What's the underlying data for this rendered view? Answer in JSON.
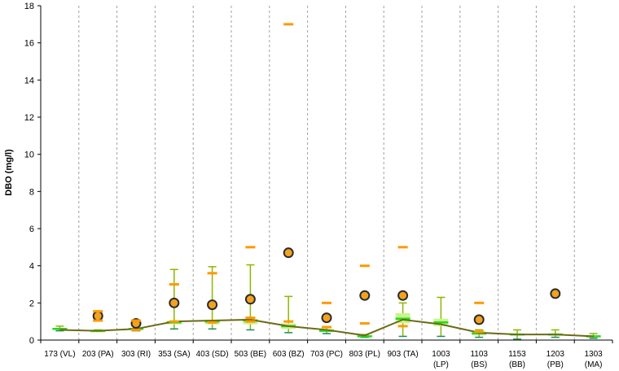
{
  "chart_data": {
    "type": "box",
    "title": "",
    "xlabel": "",
    "ylabel": "DBO (mg/l)",
    "ylim": [
      0,
      18
    ],
    "yticks": [
      0,
      2,
      4,
      6,
      8,
      10,
      12,
      14,
      16,
      18
    ],
    "grid": "vertical-dashed",
    "categories": [
      [
        "173 (VL)"
      ],
      [
        "203 (PA)"
      ],
      [
        "303 (RI)"
      ],
      [
        "353 (SA)"
      ],
      [
        "403 (SD)"
      ],
      [
        "503 (BE)"
      ],
      [
        "603 (BZ)"
      ],
      [
        "703 (PC)"
      ],
      [
        "803 (PL)"
      ],
      [
        "903 (TA)"
      ],
      [
        "1003",
        "(LP)"
      ],
      [
        "1103",
        "(BS)"
      ],
      [
        "1153",
        "(BB)"
      ],
      [
        "1203",
        "(PB)"
      ],
      [
        "1303",
        "(MA)"
      ]
    ],
    "whisker_low": [
      0.5,
      0.5,
      0.5,
      0.6,
      0.6,
      0.55,
      0.4,
      0.35,
      0.15,
      0.2,
      0.2,
      0.15,
      0.05,
      0.15,
      0.1
    ],
    "whisker_high": [
      0.75,
      0.55,
      0.8,
      3.8,
      3.95,
      4.05,
      2.35,
      0.7,
      0.3,
      2.0,
      2.3,
      0.55,
      0.55,
      0.55,
      0.35
    ],
    "q1": [
      0.55,
      0.5,
      0.55,
      0.85,
      0.85,
      0.85,
      0.6,
      0.45,
      0.2,
      0.9,
      0.75,
      0.3,
      0.25,
      0.25,
      0.15
    ],
    "q3": [
      0.65,
      0.5,
      0.65,
      1.05,
      1.1,
      1.15,
      0.9,
      0.6,
      0.25,
      1.45,
      1.15,
      0.45,
      0.35,
      0.35,
      0.25
    ],
    "median": [
      0.6,
      0.5,
      0.6,
      0.95,
      1.0,
      1.05,
      0.75,
      0.5,
      0.2,
      1.15,
      0.95,
      0.35,
      0.3,
      0.3,
      0.2
    ],
    "trend": [
      0.55,
      0.5,
      0.6,
      1.0,
      1.05,
      1.1,
      0.75,
      0.55,
      0.25,
      1.1,
      0.85,
      0.4,
      0.3,
      0.3,
      0.2
    ],
    "mean": [
      null,
      1.3,
      0.9,
      2.0,
      1.9,
      2.2,
      4.7,
      1.2,
      2.4,
      2.4,
      null,
      1.1,
      null,
      2.5,
      null
    ],
    "marks": [
      [],
      [
        1.05,
        1.55
      ],
      [
        0.55,
        1.05
      ],
      [
        1.0,
        3.0
      ],
      [
        0.95,
        3.6
      ],
      [
        1.0,
        1.2,
        5.0
      ],
      [
        1.0,
        17.0
      ],
      [
        0.7,
        2.0
      ],
      [
        0.9,
        4.0
      ],
      [
        0.75,
        5.0
      ],
      [],
      [
        0.45,
        2.0
      ],
      [],
      [],
      []
    ],
    "colors": {
      "whisker": "#8cb800",
      "box": "#c9f58c",
      "median": "#24d81c",
      "low_cap": "#1f8a5c",
      "trend": "#6b6b14",
      "mark": "#ff9900",
      "mean_fill": "#f2a21e",
      "mean_edge": "#2b2b2b",
      "grid": "#a0a0a0"
    }
  }
}
